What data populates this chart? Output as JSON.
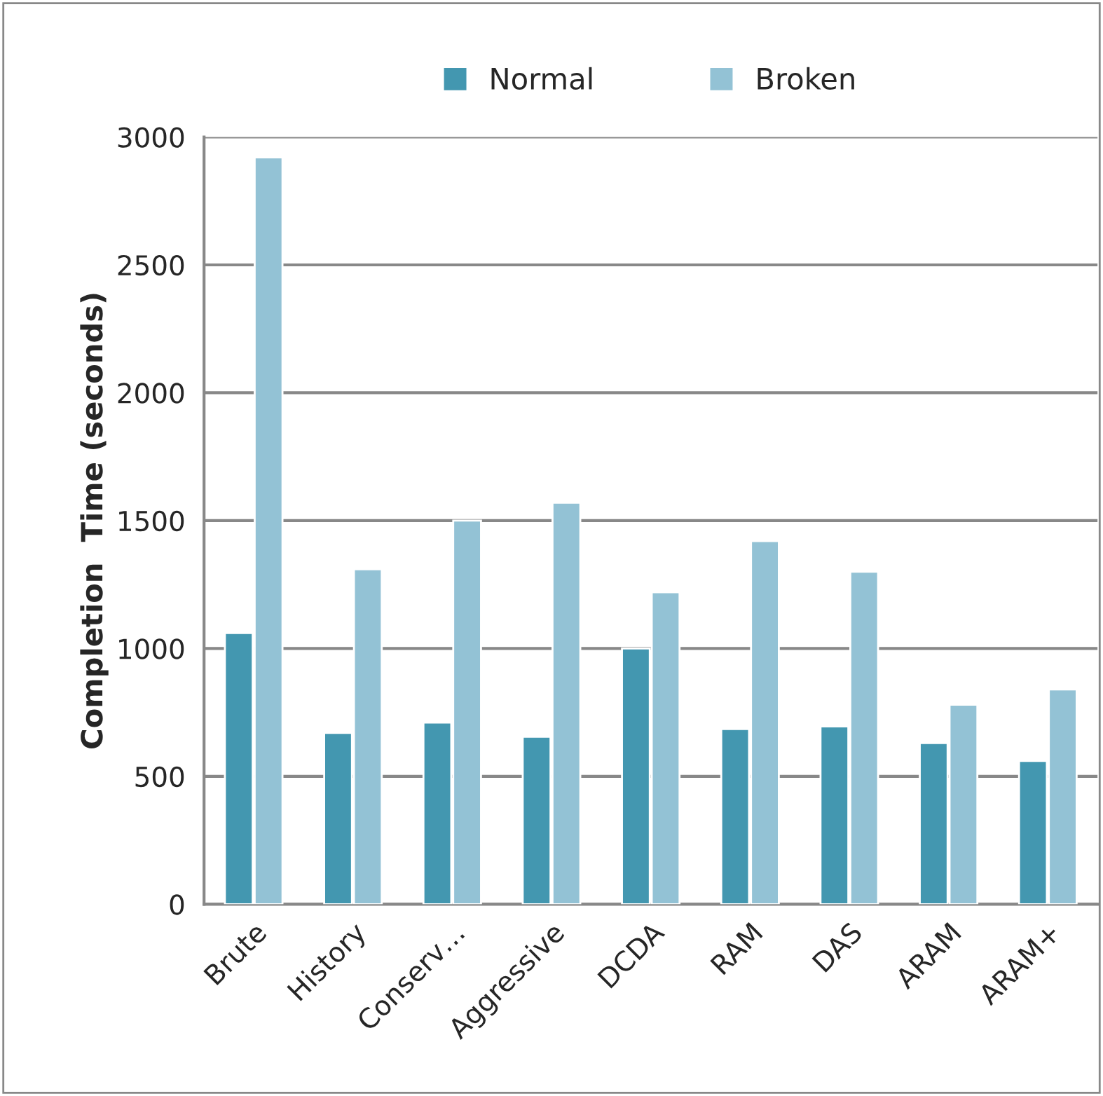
{
  "chart_data": {
    "type": "bar",
    "ylabel": "Completion  Time (seconds)",
    "categories": [
      "Brute",
      "History",
      "Conserv…",
      "Aggressive",
      "DCDA",
      "RAM",
      "DAS",
      "ARAM",
      "ARAM+"
    ],
    "series": [
      {
        "name": "Normal",
        "color": "#4397b0",
        "values": [
          1060,
          670,
          710,
          655,
          1000,
          685,
          695,
          630,
          560
        ]
      },
      {
        "name": "Broken",
        "color": "#93c2d5",
        "values": [
          2920,
          1310,
          1500,
          1570,
          1220,
          1420,
          1300,
          780,
          840
        ]
      }
    ],
    "ylim": [
      0,
      3000
    ],
    "yticks": [
      0,
      500,
      1000,
      1500,
      2000,
      2500,
      3000
    ],
    "grid": "y",
    "legend": "top"
  }
}
